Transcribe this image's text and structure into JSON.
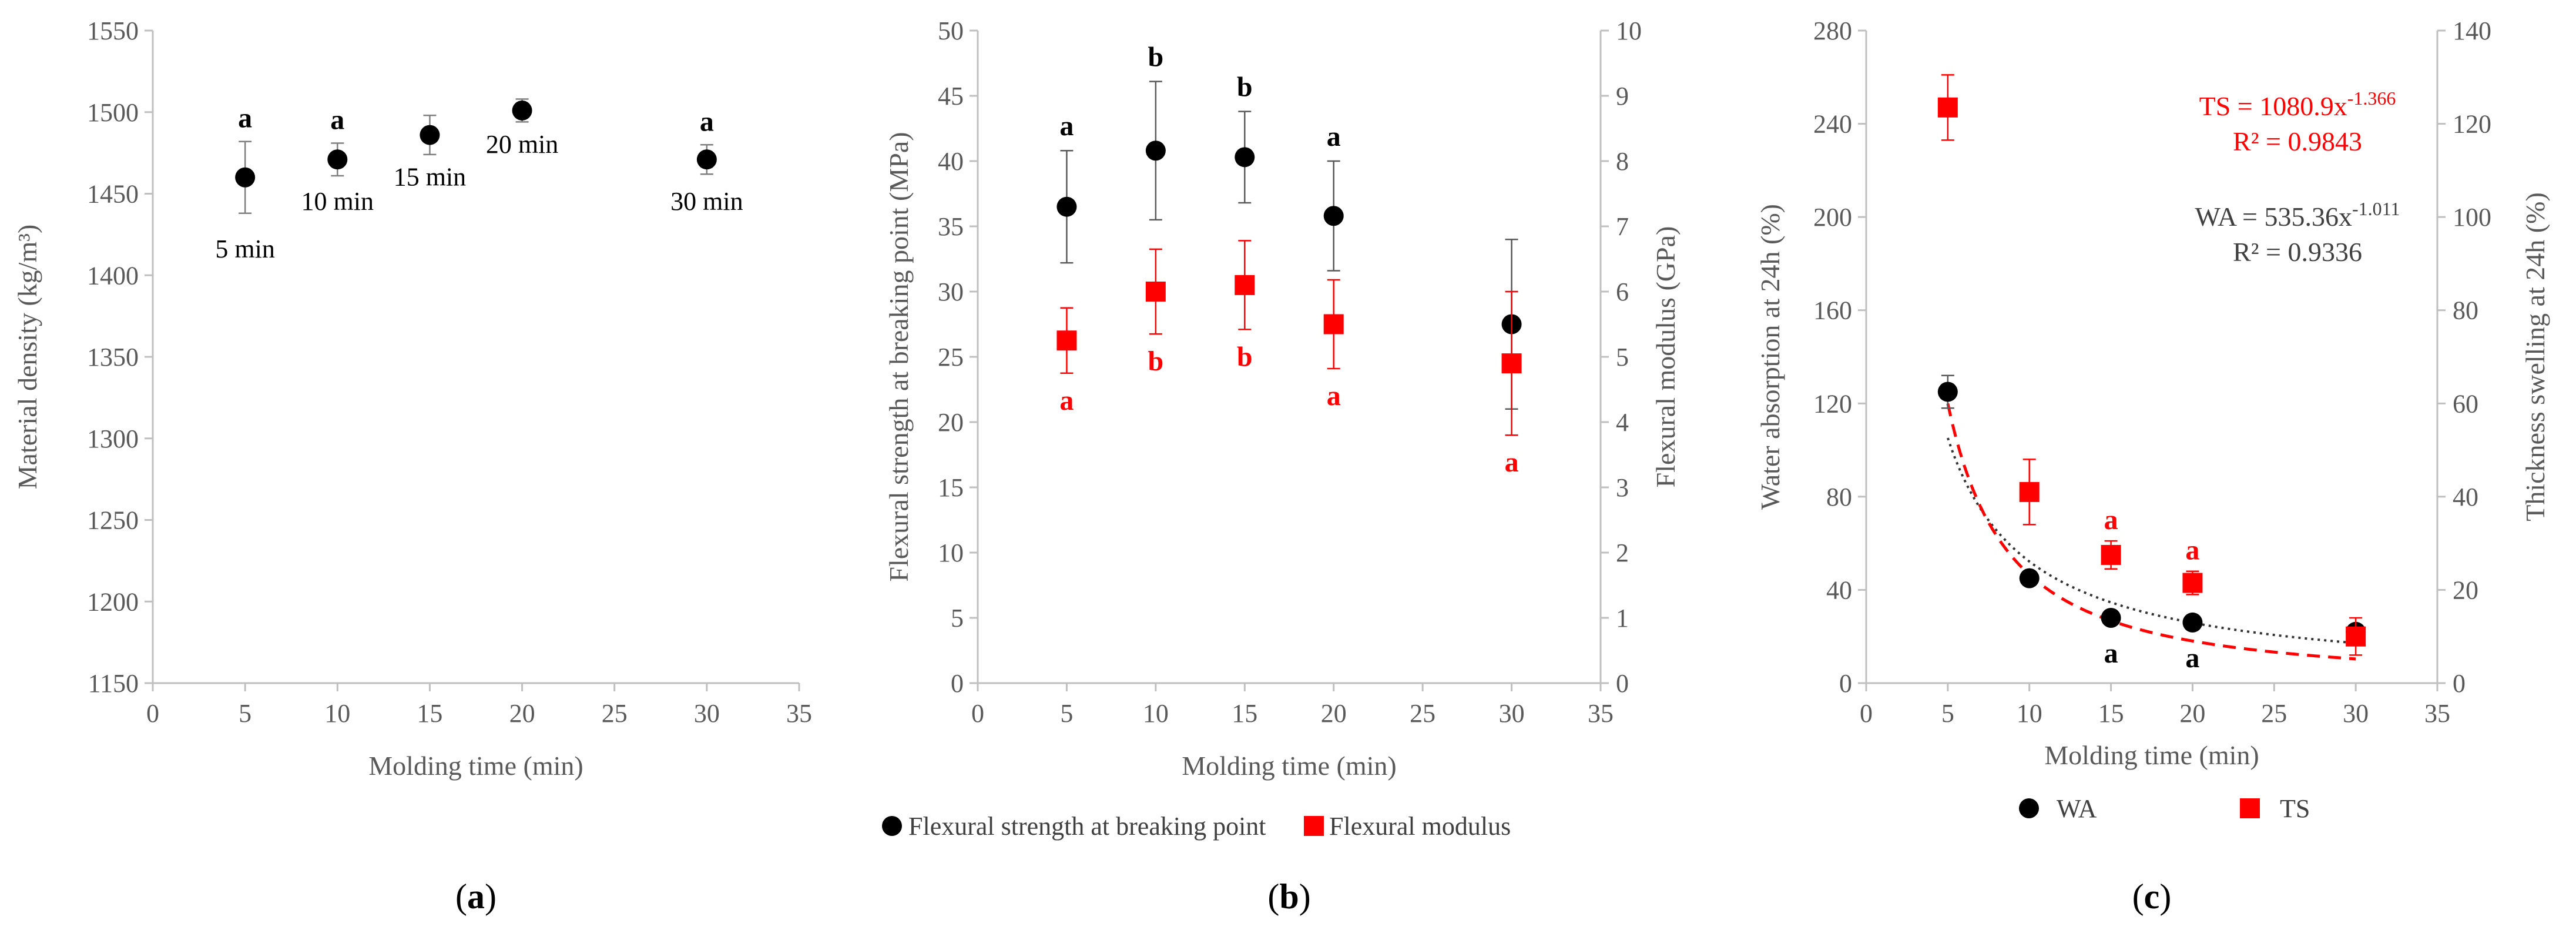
{
  "chart_data": [
    {
      "id": "a",
      "type": "scatter",
      "panel_label": "a",
      "xlabel": "Molding time (min)",
      "ylabel": "Material density (kg/m³)",
      "xlim": [
        0,
        35
      ],
      "ylim": [
        1150,
        1550
      ],
      "x_ticks": [
        "0",
        "5",
        "10",
        "15",
        "20",
        "25",
        "30",
        "35"
      ],
      "y_ticks": [
        "1150",
        "1200",
        "1250",
        "1300",
        "1350",
        "1400",
        "1450",
        "1500",
        "1550"
      ],
      "points": [
        {
          "x": 5,
          "y": 1460,
          "err": 22,
          "letter": "a",
          "label": "5 min",
          "label_pos": "below"
        },
        {
          "x": 10,
          "y": 1471,
          "err": 10,
          "letter": "a",
          "label": "10 min",
          "label_pos": "below"
        },
        {
          "x": 15,
          "y": 1486,
          "err": 12,
          "letter": "",
          "label": "15 min",
          "label_pos": "below"
        },
        {
          "x": 20,
          "y": 1501,
          "err": 7,
          "letter": "",
          "label": "20 min",
          "label_pos": "below"
        },
        {
          "x": 30,
          "y": 1471,
          "err": 9,
          "letter": "a",
          "label": "30 min",
          "label_pos": "below"
        }
      ]
    },
    {
      "id": "b",
      "type": "scatter",
      "panel_label": "b",
      "xlabel": "Molding time (min)",
      "ylabel": "Flexural strength at breaking point (MPa)",
      "ylabel_right": "Flexural modulus (GPa)",
      "xlim": [
        0,
        35
      ],
      "ylim": [
        0,
        50
      ],
      "ylim_right": [
        0,
        10
      ],
      "x_ticks": [
        "0",
        "5",
        "10",
        "15",
        "20",
        "25",
        "30",
        "35"
      ],
      "y_ticks": [
        "0",
        "5",
        "10",
        "15",
        "20",
        "25",
        "30",
        "35",
        "40",
        "45",
        "50"
      ],
      "y_ticks_right": [
        "0",
        "1",
        "2",
        "3",
        "4",
        "5",
        "6",
        "7",
        "8",
        "9",
        "10"
      ],
      "legend": [
        "Flexural strength at breaking point",
        "Flexural modulus"
      ],
      "series": [
        {
          "name": "Flexural strength at breaking point",
          "axis": "left",
          "color": "#000000",
          "marker": "circle",
          "points": [
            {
              "x": 5,
              "y": 36.5,
              "err": 4.3,
              "letter": "a",
              "letter_pos": "above"
            },
            {
              "x": 10,
              "y": 40.8,
              "err": 5.3,
              "letter": "b",
              "letter_pos": "above"
            },
            {
              "x": 15,
              "y": 40.3,
              "err": 3.5,
              "letter": "b",
              "letter_pos": "above"
            },
            {
              "x": 20,
              "y": 35.8,
              "err": 4.2,
              "letter": "a",
              "letter_pos": "above"
            },
            {
              "x": 30,
              "y": 27.5,
              "err": 6.5,
              "letter": "",
              "letter_pos": "above"
            }
          ]
        },
        {
          "name": "Flexural modulus",
          "axis": "right",
          "color": "#ff0000",
          "marker": "square",
          "points": [
            {
              "x": 5,
              "y": 5.25,
              "err": 0.5,
              "letter": "a",
              "letter_pos": "below"
            },
            {
              "x": 10,
              "y": 6.0,
              "err": 0.65,
              "letter": "b",
              "letter_pos": "below"
            },
            {
              "x": 15,
              "y": 6.1,
              "err": 0.68,
              "letter": "b",
              "letter_pos": "below"
            },
            {
              "x": 20,
              "y": 5.5,
              "err": 0.68,
              "letter": "a",
              "letter_pos": "below"
            },
            {
              "x": 30,
              "y": 4.9,
              "err": 1.1,
              "letter": "a",
              "letter_pos": "below"
            }
          ]
        }
      ]
    },
    {
      "id": "c",
      "type": "scatter",
      "panel_label": "c",
      "xlabel": "Molding time (min)",
      "ylabel": "Water absorption at 24h (%)",
      "ylabel_right": "Thickness swelling at 24h (%)",
      "xlim": [
        0,
        35
      ],
      "ylim": [
        0,
        280
      ],
      "ylim_right": [
        0,
        140
      ],
      "x_ticks": [
        "0",
        "5",
        "10",
        "15",
        "20",
        "25",
        "30",
        "35"
      ],
      "y_ticks": [
        "0",
        "40",
        "80",
        "120",
        "160",
        "200",
        "240",
        "280"
      ],
      "y_ticks_right": [
        "0",
        "20",
        "40",
        "60",
        "80",
        "100",
        "120",
        "140"
      ],
      "legend": [
        "WA",
        "TS"
      ],
      "series": [
        {
          "name": "WA",
          "axis": "left",
          "color": "#000000",
          "marker": "circle",
          "fit": {
            "a": 535.36,
            "b": -1.011,
            "style": "dotted",
            "color": "#333333"
          },
          "points": [
            {
              "x": 5,
              "y": 125,
              "err": 7,
              "letter": "",
              "letter_pos": "below"
            },
            {
              "x": 10,
              "y": 45,
              "err": 3,
              "letter": "",
              "letter_pos": "below"
            },
            {
              "x": 15,
              "y": 28,
              "err": 2,
              "letter": "a",
              "letter_pos": "below"
            },
            {
              "x": 20,
              "y": 26,
              "err": 2,
              "letter": "a",
              "letter_pos": "below"
            },
            {
              "x": 30,
              "y": 22,
              "err": 2,
              "letter": "",
              "letter_pos": "below"
            }
          ]
        },
        {
          "name": "TS",
          "axis": "right",
          "color": "#ff0000",
          "marker": "square",
          "fit": {
            "a": 1080.9,
            "b": -1.366,
            "style": "dashed",
            "color": "#ff0000",
            "scale": 0.5
          },
          "points": [
            {
              "x": 5,
              "y": 123.5,
              "err": 7,
              "letter": "",
              "letter_pos": "above"
            },
            {
              "x": 10,
              "y": 41,
              "err": 7,
              "letter": "",
              "letter_pos": "above"
            },
            {
              "x": 15,
              "y": 27.5,
              "err": 3,
              "letter": "a",
              "letter_pos": "above"
            },
            {
              "x": 20,
              "y": 21.5,
              "err": 2.5,
              "letter": "a",
              "letter_pos": "above"
            },
            {
              "x": 30,
              "y": 10,
              "err": 4,
              "letter": "",
              "letter_pos": "above"
            }
          ]
        }
      ],
      "equations": [
        {
          "series": "TS",
          "eq_main": "TS = 1080.9x",
          "eq_exp": "-1.366",
          "r2": "R² = 0.9843",
          "color": "#ff0000"
        },
        {
          "series": "WA",
          "eq_main": "WA = 535.36x",
          "eq_exp": "-1.011",
          "r2": "R² = 0.9336",
          "color": "#404040"
        }
      ]
    }
  ]
}
